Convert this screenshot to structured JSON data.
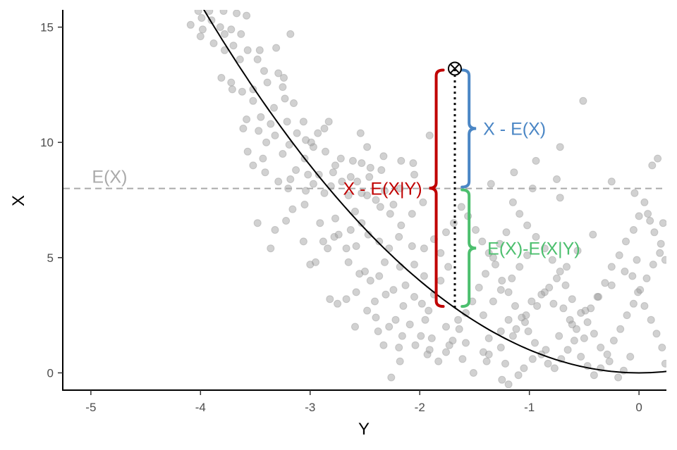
{
  "chart_data": {
    "type": "scatter",
    "title": "",
    "xlabel": "Y",
    "ylabel": "X",
    "xlim": [
      -5.25,
      0.25
    ],
    "ylim": [
      -0.75,
      15.75
    ],
    "xticks": [
      -5,
      -4,
      -3,
      -2,
      -1,
      0
    ],
    "xtick_labels": [
      "-5",
      "-4",
      "-3",
      "-2",
      "-1",
      "0"
    ],
    "yticks": [
      0,
      5,
      10,
      15
    ],
    "ytick_labels": [
      "0",
      "5",
      "10",
      "15"
    ],
    "grid": false,
    "legend": "none",
    "points_style": {
      "color": "#999999",
      "opacity": 0.45
    },
    "curve": {
      "form": "quadratic",
      "a": 1,
      "vertex_x": 0,
      "vertex_y": 0,
      "x_range": [
        -4.05,
        0.25
      ],
      "color": "#000000"
    },
    "mean_line": {
      "y": 8.0,
      "label": "E(X)",
      "color": "#aaaaaa",
      "style": "dashed"
    },
    "focal_point": {
      "x": -1.68,
      "y": 13.2
    },
    "focal_line": {
      "x": -1.68,
      "y_from": 2.82,
      "y_to": 13.2,
      "style": "dotted"
    },
    "braces": [
      {
        "label": "X - E(X|Y)",
        "color": "#c00000",
        "x": -1.85,
        "y_from": 2.82,
        "y_to": 13.2,
        "side": "left"
      },
      {
        "label": "X - E(X)",
        "color": "#4a86c5",
        "x": -1.55,
        "y_from": 8.0,
        "y_to": 13.2,
        "side": "right"
      },
      {
        "label": "E(X)-E(X|Y)",
        "color": "#4cbf6e",
        "x": -1.55,
        "y_from": 2.82,
        "y_to": 8.0,
        "side": "right"
      }
    ],
    "points": [
      [
        -4.02,
        15.7
      ],
      [
        -3.92,
        15.7
      ],
      [
        -3.79,
        15.7
      ],
      [
        -3.67,
        15.6
      ],
      [
        -3.99,
        15.4
      ],
      [
        -3.9,
        15.3
      ],
      [
        -4.09,
        15.1
      ],
      [
        -3.82,
        15.0
      ],
      [
        -3.72,
        14.9
      ],
      [
        -3.58,
        15.5
      ],
      [
        -3.98,
        14.9
      ],
      [
        -3.78,
        14.7
      ],
      [
        -3.63,
        14.7
      ],
      [
        -3.88,
        14.3
      ],
      [
        -4.0,
        14.6
      ],
      [
        -3.7,
        14.2
      ],
      [
        -3.78,
        14.0
      ],
      [
        -3.57,
        14.0
      ],
      [
        -3.64,
        13.6
      ],
      [
        -3.48,
        13.6
      ],
      [
        -3.46,
        14.0
      ],
      [
        -3.31,
        14.1
      ],
      [
        -3.18,
        14.7
      ],
      [
        -3.42,
        13.1
      ],
      [
        -3.29,
        13.0
      ],
      [
        -3.39,
        12.6
      ],
      [
        -3.24,
        12.8
      ],
      [
        -3.52,
        12.3
      ],
      [
        -3.62,
        12.2
      ],
      [
        -3.72,
        12.6
      ],
      [
        -3.81,
        12.8
      ],
      [
        -3.71,
        12.3
      ],
      [
        -3.52,
        11.8
      ],
      [
        -3.25,
        12.4
      ],
      [
        -3.23,
        11.9
      ],
      [
        -3.33,
        11.5
      ],
      [
        -3.15,
        11.7
      ],
      [
        -3.45,
        11.1
      ],
      [
        -3.36,
        10.8
      ],
      [
        -3.58,
        11.0
      ],
      [
        -3.61,
        10.6
      ],
      [
        -3.47,
        10.5
      ],
      [
        -3.21,
        10.9
      ],
      [
        -3.06,
        10.9
      ],
      [
        -2.93,
        10.4
      ],
      [
        -2.87,
        10.6
      ],
      [
        -2.83,
        10.9
      ],
      [
        -3.04,
        10.1
      ],
      [
        -2.97,
        9.8
      ],
      [
        -3.19,
        9.9
      ],
      [
        -3.32,
        10.3
      ],
      [
        -3.4,
        10.0
      ],
      [
        -3.57,
        9.6
      ],
      [
        -3.25,
        9.5
      ],
      [
        -3.13,
        8.8
      ],
      [
        -3.05,
        9.3
      ],
      [
        -3.18,
        8.4
      ],
      [
        -3.02,
        8.6
      ],
      [
        -2.92,
        8.6
      ],
      [
        -2.79,
        8.7
      ],
      [
        -2.77,
        9.0
      ],
      [
        -2.61,
        9.2
      ],
      [
        -2.53,
        9.1
      ],
      [
        -2.45,
        8.9
      ],
      [
        -2.35,
        8.8
      ],
      [
        -2.46,
        8.5
      ],
      [
        -2.57,
        8.3
      ],
      [
        -2.71,
        8.3
      ],
      [
        -2.81,
        8.1
      ],
      [
        -2.97,
        8.2
      ],
      [
        -3.2,
        8.0
      ],
      [
        -3.04,
        7.9
      ],
      [
        -2.87,
        7.8
      ],
      [
        -2.65,
        7.7
      ],
      [
        -2.48,
        7.7
      ],
      [
        -2.32,
        7.9
      ],
      [
        -2.18,
        8.0
      ],
      [
        -2.05,
        8.6
      ],
      [
        -2.17,
        9.2
      ],
      [
        -2.33,
        9.4
      ],
      [
        -2.54,
        10.4
      ],
      [
        -2.48,
        9.8
      ],
      [
        -2.06,
        9.1
      ],
      [
        -1.91,
        10.3
      ],
      [
        -2.24,
        7.3
      ],
      [
        -2.36,
        7.2
      ],
      [
        -2.59,
        7.0
      ],
      [
        -2.77,
        6.7
      ],
      [
        -2.91,
        6.5
      ],
      [
        -3.05,
        7.3
      ],
      [
        -3.16,
        7.1
      ],
      [
        -3.22,
        6.6
      ],
      [
        -3.32,
        6.2
      ],
      [
        -3.48,
        6.5
      ],
      [
        -3.06,
        5.7
      ],
      [
        -2.88,
        5.7
      ],
      [
        -2.78,
        5.9
      ],
      [
        -2.67,
        5.4
      ],
      [
        -2.58,
        5.5
      ],
      [
        -2.47,
        6.0
      ],
      [
        -2.37,
        5.7
      ],
      [
        -2.28,
        5.4
      ],
      [
        -2.19,
        5.9
      ],
      [
        -2.07,
        5.5
      ],
      [
        -1.96,
        5.4
      ],
      [
        -2.32,
        4.8
      ],
      [
        -2.5,
        4.4
      ],
      [
        -2.37,
        4.2
      ],
      [
        -2.18,
        4.6
      ],
      [
        -2.05,
        4.7
      ],
      [
        -1.96,
        4.2
      ],
      [
        -2.13,
        3.8
      ],
      [
        -2.24,
        3.6
      ],
      [
        -2.31,
        3.4
      ],
      [
        -2.41,
        3.1
      ],
      [
        -2.58,
        3.5
      ],
      [
        -2.75,
        3.0
      ],
      [
        -2.15,
        2.9
      ],
      [
        -2.05,
        3.3
      ],
      [
        -1.98,
        3.0
      ],
      [
        -1.92,
        2.7
      ],
      [
        -1.95,
        2.3
      ],
      [
        -2.09,
        2.1
      ],
      [
        -2.22,
        2.3
      ],
      [
        -2.38,
        1.8
      ],
      [
        -2.59,
        2.0
      ],
      [
        -2.33,
        1.2
      ],
      [
        -2.18,
        0.5
      ],
      [
        -2.26,
        -0.2
      ],
      [
        -2.19,
        1.1
      ],
      [
        -1.89,
        1.5
      ],
      [
        -1.76,
        2.0
      ],
      [
        -1.65,
        2.3
      ],
      [
        -1.58,
        1.3
      ],
      [
        -1.42,
        0.9
      ],
      [
        -1.37,
        1.5
      ],
      [
        -1.26,
        1.8
      ],
      [
        -1.19,
        2.3
      ],
      [
        -1.12,
        1.9
      ],
      [
        -1.03,
        2.5
      ],
      [
        -0.98,
        3.1
      ],
      [
        -0.89,
        3.4
      ],
      [
        -0.82,
        3.7
      ],
      [
        -0.78,
        3.0
      ],
      [
        -0.69,
        2.8
      ],
      [
        -0.63,
        2.3
      ],
      [
        -0.57,
        1.9
      ],
      [
        -0.5,
        1.5
      ],
      [
        -0.44,
        2.8
      ],
      [
        -0.38,
        3.3
      ],
      [
        -0.31,
        3.9
      ],
      [
        -0.25,
        4.6
      ],
      [
        -0.18,
        5.1
      ],
      [
        -0.12,
        5.7
      ],
      [
        -0.05,
        6.2
      ],
      [
        0.0,
        6.8
      ],
      [
        0.05,
        7.4
      ],
      [
        0.1,
        6.6
      ],
      [
        0.14,
        6.1
      ],
      [
        0.2,
        5.6
      ],
      [
        0.24,
        4.9
      ],
      [
        -0.06,
        4.2
      ],
      [
        -0.01,
        3.5
      ],
      [
        0.05,
        2.9
      ],
      [
        0.11,
        2.3
      ],
      [
        0.16,
        1.7
      ],
      [
        0.21,
        1.1
      ],
      [
        0.24,
        0.4
      ],
      [
        -0.08,
        0.7
      ],
      [
        -0.14,
        0.1
      ],
      [
        -0.19,
        -0.2
      ],
      [
        -0.27,
        0.5
      ],
      [
        -0.35,
        1.1
      ],
      [
        -0.41,
        1.7
      ],
      [
        -0.47,
        2.2
      ],
      [
        -0.53,
        2.6
      ],
      [
        -0.61,
        3.2
      ],
      [
        -0.67,
        3.8
      ],
      [
        -0.72,
        4.4
      ],
      [
        -0.79,
        4.9
      ],
      [
        -0.86,
        5.4
      ],
      [
        -0.94,
        5.9
      ],
      [
        -1.02,
        6.4
      ],
      [
        -1.09,
        6.9
      ],
      [
        -1.15,
        7.4
      ],
      [
        -1.21,
        6.1
      ],
      [
        -1.27,
        5.6
      ],
      [
        -1.33,
        5.0
      ],
      [
        -1.4,
        4.3
      ],
      [
        -1.46,
        3.7
      ],
      [
        -1.52,
        3.1
      ],
      [
        -1.58,
        2.6
      ],
      [
        -1.64,
        1.9
      ],
      [
        -1.7,
        1.4
      ],
      [
        -1.76,
        0.9
      ],
      [
        -1.83,
        0.5
      ],
      [
        -1.91,
        1.0
      ],
      [
        -1.99,
        1.6
      ],
      [
        -1.87,
        3.4
      ],
      [
        -1.81,
        4.0
      ],
      [
        -1.74,
        4.6
      ],
      [
        -1.81,
        5.2
      ],
      [
        -1.87,
        5.8
      ],
      [
        -1.76,
        6.1
      ],
      [
        -1.69,
        6.5
      ],
      [
        -1.62,
        7.2
      ],
      [
        -1.56,
        6.8
      ],
      [
        -1.49,
        6.2
      ],
      [
        -1.43,
        5.7
      ],
      [
        -1.37,
        5.2
      ],
      [
        -1.31,
        4.7
      ],
      [
        -1.25,
        4.0
      ],
      [
        -1.19,
        3.5
      ],
      [
        -1.13,
        2.9
      ],
      [
        -1.07,
        2.4
      ],
      [
        -1.01,
        1.8
      ],
      [
        -0.95,
        1.3
      ],
      [
        -0.89,
        0.8
      ],
      [
        -0.83,
        0.4
      ],
      [
        -0.77,
        0.2
      ],
      [
        -0.71,
        0.6
      ],
      [
        -0.65,
        1.0
      ],
      [
        -0.59,
        1.4
      ],
      [
        -0.53,
        0.7
      ],
      [
        -0.47,
        0.3
      ],
      [
        -0.41,
        -0.1
      ],
      [
        -0.35,
        0.2
      ],
      [
        -0.29,
        0.8
      ],
      [
        -0.23,
        1.4
      ],
      [
        -0.17,
        1.9
      ],
      [
        -0.11,
        2.5
      ],
      [
        -0.05,
        3.0
      ],
      [
        0.01,
        3.6
      ],
      [
        0.07,
        4.1
      ],
      [
        0.13,
        4.7
      ],
      [
        0.19,
        5.2
      ],
      [
        -1.73,
        1.2
      ],
      [
        -1.37,
        0.8
      ],
      [
        -1.22,
        0.4
      ],
      [
        -1.1,
        -0.1
      ],
      [
        -1.25,
        -0.3
      ],
      [
        -1.19,
        -0.5
      ],
      [
        -1.05,
        0.2
      ],
      [
        -0.97,
        0.6
      ],
      [
        -0.85,
        1.0
      ],
      [
        -0.73,
        1.6
      ],
      [
        -0.61,
        2.1
      ],
      [
        -0.49,
        2.7
      ],
      [
        -0.37,
        3.3
      ],
      [
        -0.25,
        3.8
      ],
      [
        -0.13,
        4.4
      ],
      [
        -0.02,
        4.9
      ],
      [
        -0.51,
        11.8
      ],
      [
        -0.72,
        9.8
      ],
      [
        -0.94,
        9.2
      ],
      [
        -1.14,
        8.7
      ],
      [
        -1.35,
        8.2
      ],
      [
        -0.75,
        8.4
      ],
      [
        -0.97,
        8.0
      ],
      [
        -0.72,
        7.6
      ],
      [
        0.12,
        9.0
      ],
      [
        0.17,
        9.3
      ],
      [
        0.22,
        6.5
      ],
      [
        0.08,
        6.9
      ],
      [
        -0.04,
        7.8
      ],
      [
        -0.25,
        8.3
      ],
      [
        -0.42,
        6.0
      ],
      [
        -0.56,
        5.3
      ],
      [
        -0.66,
        4.6
      ],
      [
        -0.75,
        4.1
      ],
      [
        -0.86,
        3.5
      ],
      [
        -0.93,
        2.9
      ],
      [
        -1.04,
        2.2
      ],
      [
        -1.15,
        1.6
      ],
      [
        -1.26,
        1.1
      ],
      [
        -1.39,
        0.5
      ],
      [
        -1.51,
        0.0
      ],
      [
        -1.61,
        0.6
      ],
      [
        -1.42,
        2.5
      ],
      [
        -1.33,
        3.1
      ],
      [
        -1.26,
        3.6
      ],
      [
        -1.16,
        4.1
      ],
      [
        -1.09,
        4.6
      ],
      [
        -1.02,
        5.1
      ],
      [
        -2.53,
        6.5
      ],
      [
        -2.63,
        6.2
      ],
      [
        -2.74,
        6.0
      ],
      [
        -2.84,
        5.4
      ],
      [
        -2.95,
        4.8
      ],
      [
        -2.65,
        4.8
      ],
      [
        -2.55,
        4.3
      ],
      [
        -2.45,
        4.0
      ],
      [
        -2.67,
        3.2
      ],
      [
        -2.48,
        2.7
      ],
      [
        -2.4,
        2.4
      ],
      [
        -2.28,
        2.0
      ],
      [
        -2.16,
        1.6
      ],
      [
        -2.04,
        1.2
      ],
      [
        -1.93,
        0.8
      ],
      [
        -2.17,
        6.4
      ],
      [
        -2.07,
        6.9
      ],
      [
        -1.97,
        7.4
      ],
      [
        -2.27,
        6.9
      ],
      [
        -2.4,
        7.5
      ],
      [
        -2.53,
        7.8
      ],
      [
        -2.63,
        8.5
      ],
      [
        -2.72,
        9.3
      ],
      [
        -2.86,
        9.6
      ],
      [
        -2.99,
        10.0
      ],
      [
        -3.12,
        10.4
      ],
      [
        -3.43,
        9.3
      ],
      [
        -3.52,
        9.0
      ],
      [
        -3.41,
        8.7
      ],
      [
        -3.29,
        8.3
      ],
      [
        -3.36,
        5.4
      ],
      [
        -3.0,
        4.7
      ],
      [
        -2.82,
        3.2
      ]
    ]
  }
}
